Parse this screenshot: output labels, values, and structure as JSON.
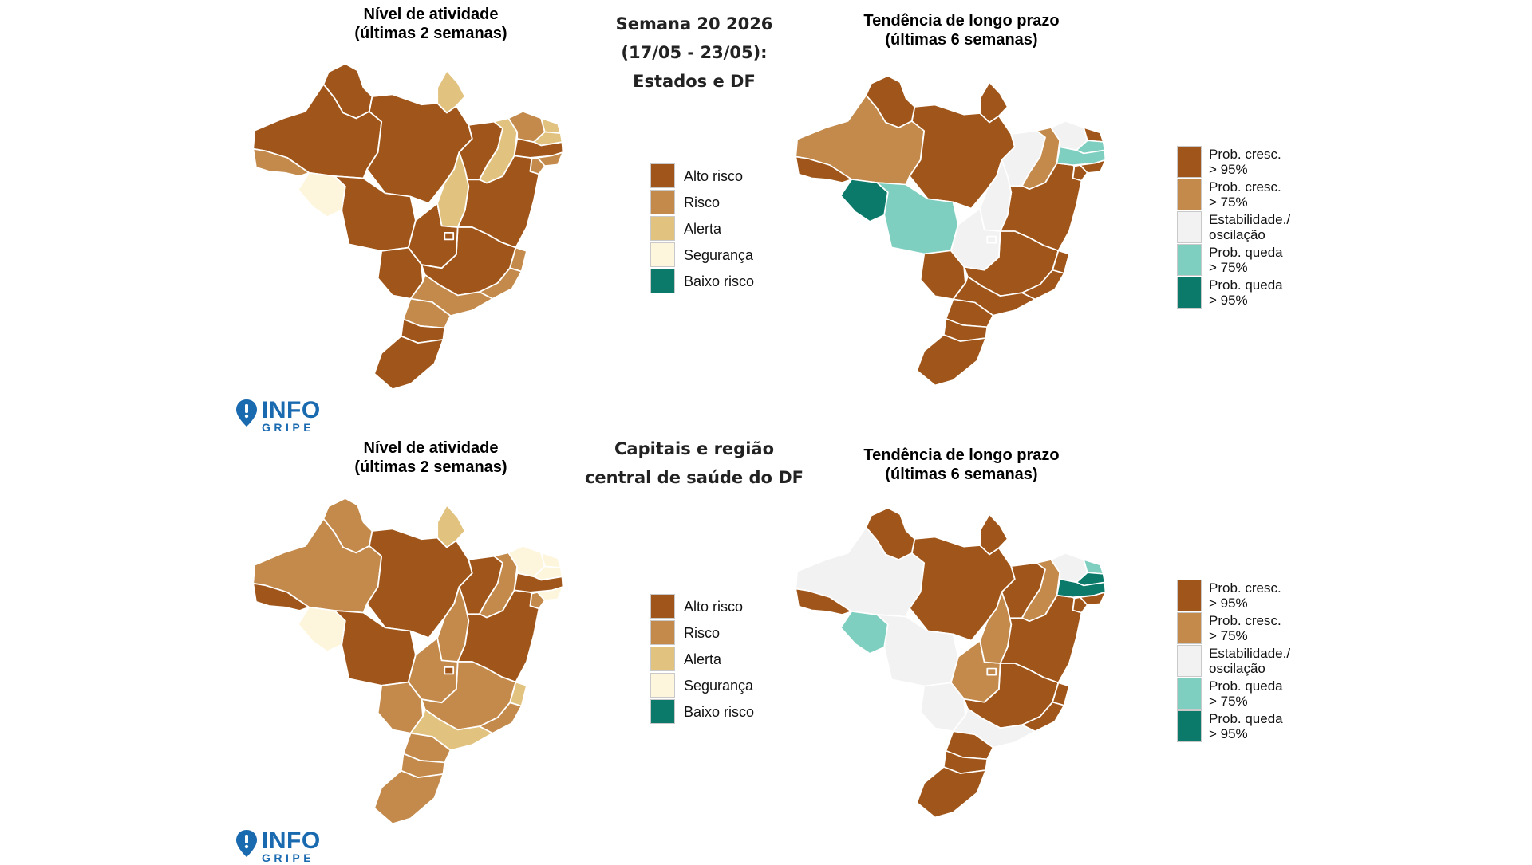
{
  "colors": {
    "alto_risco": "#a0561a",
    "risco": "#c38a4c",
    "alerta": "#e1c27f",
    "seguranca": "#fdf6dc",
    "baixo_risco": "#0b7a6b",
    "prob_cresc_95": "#a0561a",
    "prob_cresc_75": "#c38a4c",
    "estabilidade": "#f2f2f2",
    "prob_queda_75": "#7fcfc0",
    "prob_queda_95": "#0b7a6b",
    "border": "#ffffff",
    "logo": "#1a6ab0"
  },
  "logo": {
    "icon": "map-pin-icon",
    "line1": "INFO",
    "line2": "GRIPE"
  },
  "activity_legend": [
    {
      "key": "alto_risco",
      "label": "Alto risco"
    },
    {
      "key": "risco",
      "label": "Risco"
    },
    {
      "key": "alerta",
      "label": "Alerta"
    },
    {
      "key": "seguranca",
      "label": "Segurança"
    },
    {
      "key": "baixo_risco",
      "label": "Baixo risco"
    }
  ],
  "trend_legend": [
    {
      "key": "prob_cresc_95",
      "line1": "Prob. cresc.",
      "line2": "> 95%"
    },
    {
      "key": "prob_cresc_75",
      "line1": "Prob. cresc.",
      "line2": "> 75%"
    },
    {
      "key": "estabilidade",
      "line1": "Estabilidade./",
      "line2": "oscilação"
    },
    {
      "key": "prob_queda_75",
      "line1": "Prob. queda",
      "line2": "> 75%"
    },
    {
      "key": "prob_queda_95",
      "line1": "Prob. queda",
      "line2": "> 95%"
    }
  ],
  "top": {
    "center_title": [
      "Semana 20 2026",
      "(17/05 - 23/05):",
      "Estados e DF"
    ],
    "left_map": {
      "title": [
        "Nível de atividade",
        "(últimas 2 semanas)"
      ],
      "regions": {
        "RR": "alto_risco",
        "AP": "alerta",
        "AM": "alto_risco",
        "PA": "alto_risco",
        "AC": "risco",
        "RO": "seguranca",
        "MT": "alto_risco",
        "TO": "alerta",
        "MA": "alto_risco",
        "PI": "alerta",
        "CE": "risco",
        "RN": "alerta",
        "PB": "alerta",
        "PE": "alto_risco",
        "AL": "risco",
        "SE": "risco",
        "BA": "alto_risco",
        "GO": "alto_risco",
        "DF": "alto_risco",
        "MS": "alto_risco",
        "MG": "alto_risco",
        "ES": "risco",
        "RJ": "risco",
        "SP": "risco",
        "PR": "risco",
        "SC": "alto_risco",
        "RS": "alto_risco"
      }
    },
    "right_map": {
      "title": [
        "Tendência de longo prazo",
        "(últimas 6 semanas)"
      ],
      "regions": {
        "RR": "prob_cresc_95",
        "AP": "prob_cresc_95",
        "AM": "prob_cresc_75",
        "PA": "prob_cresc_95",
        "AC": "prob_cresc_95",
        "RO": "prob_queda_95",
        "MT": "prob_queda_75",
        "TO": "estabilidade",
        "MA": "estabilidade",
        "PI": "prob_cresc_75",
        "CE": "estabilidade",
        "RN": "prob_cresc_95",
        "PB": "prob_queda_75",
        "PE": "prob_queda_75",
        "AL": "prob_cresc_95",
        "SE": "prob_cresc_95",
        "BA": "prob_cresc_95",
        "GO": "estabilidade",
        "DF": "estabilidade",
        "MS": "prob_cresc_95",
        "MG": "prob_cresc_95",
        "ES": "prob_cresc_95",
        "RJ": "prob_cresc_95",
        "SP": "prob_cresc_95",
        "PR": "prob_cresc_95",
        "SC": "prob_cresc_95",
        "RS": "prob_cresc_95"
      }
    }
  },
  "bottom": {
    "center_title": [
      "Capitais e região",
      "central de saúde do DF"
    ],
    "left_map": {
      "title": [
        "Nível de atividade",
        "(últimas 2 semanas)"
      ],
      "regions": {
        "RR": "risco",
        "AP": "alerta",
        "AM": "risco",
        "PA": "alto_risco",
        "AC": "alto_risco",
        "RO": "seguranca",
        "MT": "alto_risco",
        "TO": "risco",
        "MA": "alto_risco",
        "PI": "risco",
        "CE": "seguranca",
        "RN": "seguranca",
        "PB": "seguranca",
        "PE": "alto_risco",
        "AL": "seguranca",
        "SE": "risco",
        "BA": "alto_risco",
        "GO": "risco",
        "DF": "alto_risco",
        "MS": "risco",
        "MG": "risco",
        "ES": "alerta",
        "RJ": "risco",
        "SP": "alerta",
        "PR": "risco",
        "SC": "risco",
        "RS": "risco"
      }
    },
    "right_map": {
      "title": [
        "Tendência de longo prazo",
        "(últimas 6 semanas)"
      ],
      "regions": {
        "RR": "prob_cresc_95",
        "AP": "prob_cresc_95",
        "AM": "estabilidade",
        "PA": "prob_cresc_95",
        "AC": "prob_cresc_95",
        "RO": "prob_queda_75",
        "MT": "estabilidade",
        "TO": "prob_cresc_75",
        "MA": "prob_cresc_95",
        "PI": "prob_cresc_75",
        "CE": "estabilidade",
        "RN": "prob_queda_75",
        "PB": "prob_queda_95",
        "PE": "prob_queda_95",
        "AL": "prob_cresc_95",
        "SE": "prob_cresc_95",
        "BA": "prob_cresc_95",
        "GO": "prob_cresc_75",
        "DF": "prob_cresc_75",
        "MS": "estabilidade",
        "MG": "prob_cresc_95",
        "ES": "prob_cresc_95",
        "RJ": "prob_cresc_95",
        "SP": "estabilidade",
        "PR": "prob_cresc_95",
        "SC": "prob_cresc_95",
        "RS": "prob_cresc_95"
      }
    }
  }
}
